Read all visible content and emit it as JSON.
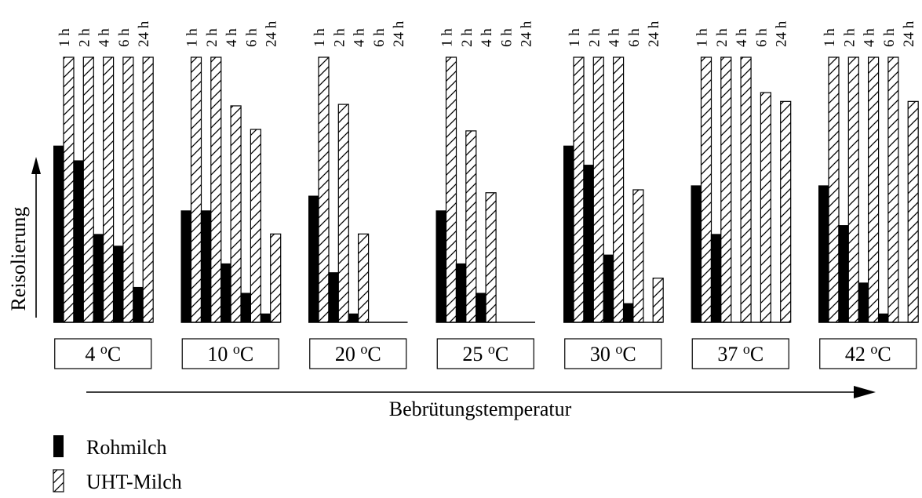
{
  "chart_data": {
    "type": "bar",
    "xlabel": "Bebrütungstemperatur",
    "ylabel": "Reisolierung",
    "time_labels": [
      "1 h",
      "2 h",
      "4 h",
      "6 h",
      "24 h"
    ],
    "group_unit": "°C",
    "groups": [
      {
        "label": "4",
        "rohmilch": [
          6.0,
          5.5,
          3.0,
          2.6,
          1.2
        ],
        "uht": [
          9.0,
          9.0,
          9.0,
          9.0,
          9.0
        ]
      },
      {
        "label": "10",
        "rohmilch": [
          3.8,
          3.8,
          2.0,
          1.0,
          0.3
        ],
        "uht": [
          9.0,
          9.0,
          7.35,
          6.55,
          3.0
        ]
      },
      {
        "label": "20",
        "rohmilch": [
          4.3,
          1.7,
          0.3,
          0,
          0
        ],
        "uht": [
          9.0,
          7.4,
          3.0,
          0,
          0
        ]
      },
      {
        "label": "25",
        "rohmilch": [
          3.8,
          2.0,
          1.0,
          0,
          0
        ],
        "uht": [
          9.0,
          6.5,
          4.4,
          0,
          0
        ]
      },
      {
        "label": "30",
        "rohmilch": [
          6.0,
          5.35,
          2.3,
          0.65,
          0
        ],
        "uht": [
          9.0,
          9.0,
          9.0,
          4.5,
          1.5
        ]
      },
      {
        "label": "37",
        "rohmilch": [
          4.65,
          3.0,
          0,
          0,
          0
        ],
        "uht": [
          9.0,
          9.0,
          9.0,
          7.8,
          7.5
        ]
      },
      {
        "label": "42",
        "rohmilch": [
          4.65,
          3.3,
          1.35,
          0.3,
          0
        ],
        "uht": [
          9.0,
          9.0,
          9.0,
          9.0,
          7.5
        ]
      }
    ],
    "legend": [
      {
        "name": "Rohmilch",
        "style": "solid-black"
      },
      {
        "name": "UHT-Milch",
        "style": "hatched"
      }
    ],
    "ylim": [
      0,
      9
    ],
    "grid": false,
    "legend_position": "bottom-left",
    "colors": {
      "rohmilch": "#000000",
      "uht": "#ffffff",
      "stroke": "#000000"
    }
  }
}
